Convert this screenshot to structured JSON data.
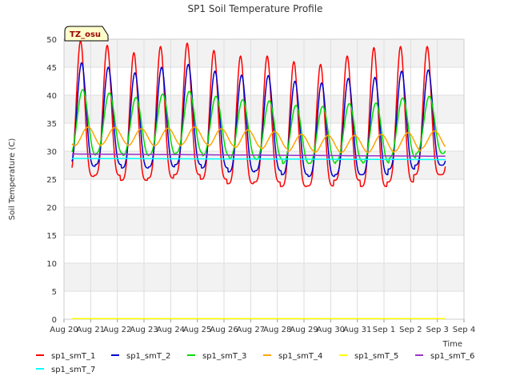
{
  "chart_data": {
    "type": "line",
    "title": "SP1 Soil Temperature Profile",
    "xlabel": "Time",
    "ylabel": "Soil Temperature (C)",
    "annotation": "TZ_osu",
    "ylim": [
      0,
      50
    ],
    "yticks": [
      0,
      5,
      10,
      15,
      20,
      25,
      30,
      35,
      40,
      45,
      50
    ],
    "xlim": [
      0,
      15
    ],
    "xticks": [
      {
        "x": 0,
        "label": "Aug 20"
      },
      {
        "x": 1,
        "label": "Aug 21"
      },
      {
        "x": 2,
        "label": "Aug 22"
      },
      {
        "x": 3,
        "label": "Aug 23"
      },
      {
        "x": 4,
        "label": "Aug 24"
      },
      {
        "x": 5,
        "label": "Aug 25"
      },
      {
        "x": 6,
        "label": "Aug 26"
      },
      {
        "x": 7,
        "label": "Aug 27"
      },
      {
        "x": 8,
        "label": "Aug 28"
      },
      {
        "x": 9,
        "label": "Aug 29"
      },
      {
        "x": 10,
        "label": "Aug 30"
      },
      {
        "x": 11,
        "label": "Aug 31"
      },
      {
        "x": 12,
        "label": "Sep 1"
      },
      {
        "x": 13,
        "label": "Sep 2"
      },
      {
        "x": 14,
        "label": "Sep 3"
      },
      {
        "x": 15,
        "label": "Sep 4"
      }
    ],
    "x_start": 0.3,
    "x_end": 14.3,
    "grid": true,
    "legend_position": "bottom",
    "series": [
      {
        "name": "sp1_smT_1",
        "color": "#ff0000",
        "kind": "diurnal",
        "phase": 0.62,
        "sharp": 2.2,
        "daily_max": [
          49.7,
          48.9,
          47.6,
          48.7,
          49.3,
          48.0,
          47.0,
          47.0,
          46.0,
          45.5,
          47.0,
          48.5,
          48.7,
          48.7
        ],
        "daily_min": [
          25.5,
          25.7,
          24.8,
          25.2,
          25.8,
          25.0,
          24.2,
          24.5,
          23.7,
          23.8,
          24.8,
          23.7,
          24.5,
          25.8
        ]
      },
      {
        "name": "sp1_smT_2",
        "color": "#0000cc",
        "kind": "diurnal",
        "phase": 0.66,
        "sharp": 1.8,
        "daily_max": [
          45.8,
          45.0,
          44.0,
          45.0,
          45.5,
          44.3,
          43.6,
          43.5,
          42.5,
          42.2,
          43.0,
          43.2,
          44.3,
          44.5
        ],
        "daily_min": [
          27.3,
          27.6,
          27.0,
          27.2,
          27.6,
          27.0,
          26.3,
          26.5,
          25.8,
          25.5,
          25.8,
          25.8,
          26.8,
          27.5
        ]
      },
      {
        "name": "sp1_smT_3",
        "color": "#00dd00",
        "kind": "diurnal",
        "phase": 0.7,
        "sharp": 1.3,
        "daily_max": [
          41.0,
          40.4,
          39.6,
          40.2,
          40.7,
          39.8,
          39.2,
          39.0,
          38.2,
          38.0,
          38.5,
          38.6,
          39.5,
          39.8
        ],
        "daily_min": [
          29.3,
          29.6,
          29.2,
          29.4,
          29.7,
          29.2,
          28.7,
          28.5,
          27.8,
          27.8,
          28.2,
          27.9,
          28.8,
          29.6
        ]
      },
      {
        "name": "sp1_smT_4",
        "color": "#ffa500",
        "kind": "diurnal",
        "phase": 0.9,
        "sharp": 1.0,
        "daily_max": [
          34.3,
          34.2,
          34.0,
          34.1,
          34.3,
          34.0,
          33.8,
          33.5,
          33.0,
          32.8,
          32.8,
          33.0,
          33.3,
          33.6
        ],
        "daily_min": [
          31.0,
          31.2,
          31.0,
          31.0,
          31.2,
          30.9,
          30.6,
          30.4,
          30.0,
          29.8,
          29.8,
          29.8,
          30.0,
          30.5
        ]
      },
      {
        "name": "sp1_smT_5",
        "color": "#ffff00",
        "kind": "flat",
        "start": 0.1,
        "end": 0.1
      },
      {
        "name": "sp1_smT_6",
        "color": "#9932cc",
        "kind": "flat",
        "start": 29.5,
        "end": 29.1
      },
      {
        "name": "sp1_smT_7",
        "color": "#00ffff",
        "kind": "flat",
        "start": 28.7,
        "end": 28.5
      }
    ]
  }
}
